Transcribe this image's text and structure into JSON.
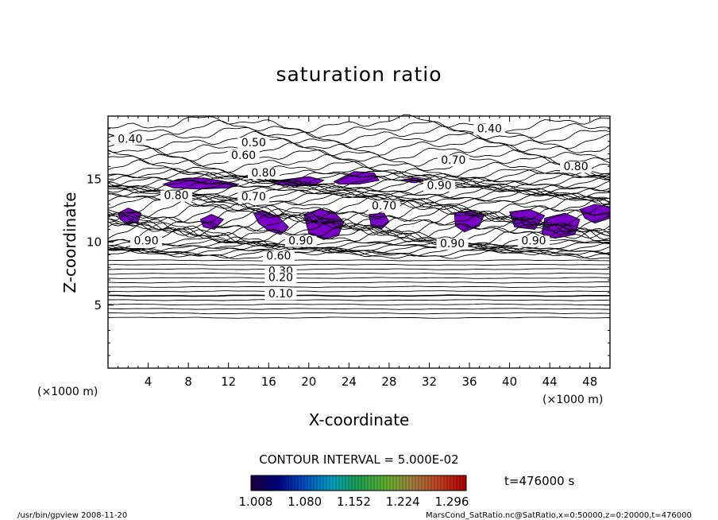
{
  "chart_data": {
    "type": "heatmap",
    "title": "saturation ratio",
    "xlabel": "X-coordinate",
    "ylabel": "Z-coordinate",
    "x_unit": "(×1000 m)",
    "y_unit": "(×1000 m)",
    "xlim": [
      0,
      50
    ],
    "ylim": [
      0,
      20
    ],
    "x_ticks": [
      4,
      8,
      12,
      16,
      20,
      24,
      28,
      32,
      36,
      40,
      44,
      48
    ],
    "y_ticks": [
      5,
      10,
      15
    ],
    "contour_interval_text": "CONTOUR INTERVAL = 5.000E-02",
    "contour_labels": [
      {
        "text": "0.40",
        "x": 2.2,
        "z": 17.9
      },
      {
        "text": "0.40",
        "x": 38.0,
        "z": 18.7
      },
      {
        "text": "0.50",
        "x": 14.5,
        "z": 17.6
      },
      {
        "text": "0.60",
        "x": 13.5,
        "z": 16.6
      },
      {
        "text": "0.70",
        "x": 34.4,
        "z": 16.2
      },
      {
        "text": "0.80",
        "x": 15.5,
        "z": 15.2
      },
      {
        "text": "0.90",
        "x": 33.0,
        "z": 14.2
      },
      {
        "text": "0.70",
        "x": 14.5,
        "z": 13.3
      },
      {
        "text": "0.80",
        "x": 6.8,
        "z": 13.4
      },
      {
        "text": "0.70",
        "x": 27.5,
        "z": 12.6
      },
      {
        "text": "0.80",
        "x": 46.6,
        "z": 15.7
      },
      {
        "text": "0.90",
        "x": 3.8,
        "z": 9.8
      },
      {
        "text": "0.90",
        "x": 19.2,
        "z": 9.8
      },
      {
        "text": "0.90",
        "x": 34.3,
        "z": 9.6
      },
      {
        "text": "0.90",
        "x": 42.4,
        "z": 9.8
      },
      {
        "text": "0.60",
        "x": 17.0,
        "z": 8.6
      },
      {
        "text": "0.30",
        "x": 17.2,
        "z": 7.4
      },
      {
        "text": "0.20",
        "x": 17.2,
        "z": 6.9
      },
      {
        "text": "0.10",
        "x": 17.2,
        "z": 5.6
      }
    ],
    "supersaturated_regions": [
      {
        "x": [
          5.5,
          7.0,
          9.5,
          11.0,
          13.0,
          12.0,
          9.0,
          6.5
        ],
        "z": [
          14.6,
          15.0,
          15.1,
          14.9,
          14.6,
          14.3,
          14.2,
          14.3
        ]
      },
      {
        "x": [
          16.0,
          18.0,
          20.0,
          21.5,
          20.5,
          17.5
        ],
        "z": [
          14.8,
          15.0,
          15.2,
          14.9,
          14.5,
          14.5
        ]
      },
      {
        "x": [
          22.5,
          24.5,
          26.5,
          27.0,
          25.0,
          23.0
        ],
        "z": [
          14.8,
          15.6,
          15.5,
          14.9,
          14.6,
          14.6
        ]
      },
      {
        "x": [
          29.0,
          30.5,
          31.8,
          30.5
        ],
        "z": [
          14.9,
          15.1,
          14.9,
          14.7
        ]
      },
      {
        "x": [
          1.0,
          2.0,
          3.3,
          3.0,
          2.0,
          1.2
        ],
        "z": [
          12.3,
          12.7,
          12.3,
          11.6,
          11.4,
          11.8
        ]
      },
      {
        "x": [
          9.2,
          10.3,
          11.5,
          10.6,
          9.5
        ],
        "z": [
          11.8,
          12.2,
          11.8,
          11.0,
          11.2
        ]
      },
      {
        "x": [
          14.5,
          15.5,
          17.0,
          18.0,
          17.2,
          16.0,
          15.0
        ],
        "z": [
          12.3,
          12.5,
          12.0,
          11.2,
          10.6,
          10.9,
          11.5
        ]
      },
      {
        "x": [
          19.5,
          21.0,
          22.5,
          23.5,
          23.0,
          21.5,
          20.0
        ],
        "z": [
          12.2,
          12.6,
          12.4,
          11.6,
          10.6,
          10.2,
          10.7
        ]
      },
      {
        "x": [
          26.0,
          27.5,
          28.0,
          27.2,
          26.2
        ],
        "z": [
          12.2,
          12.3,
          11.6,
          11.0,
          11.3
        ]
      },
      {
        "x": [
          34.5,
          36.0,
          37.5,
          37.0,
          35.5,
          34.6
        ],
        "z": [
          12.3,
          12.5,
          12.2,
          11.3,
          10.8,
          11.3
        ]
      },
      {
        "x": [
          40.0,
          42.0,
          43.5,
          42.5,
          40.5
        ],
        "z": [
          12.4,
          12.6,
          12.1,
          11.0,
          11.2
        ]
      },
      {
        "x": [
          43.5,
          45.5,
          47.0,
          46.5,
          44.5,
          43.2
        ],
        "z": [
          11.9,
          12.3,
          11.8,
          10.6,
          10.3,
          10.7
        ]
      },
      {
        "x": [
          47.0,
          48.5,
          50.0,
          50.0,
          48.5,
          47.5
        ],
        "z": [
          12.6,
          13.0,
          12.8,
          11.9,
          11.5,
          11.9
        ]
      }
    ],
    "supersaturated_color": "#7a00c8",
    "colorbar_ticks": [
      "1.008",
      "1.080",
      "1.152",
      "1.224",
      "1.296"
    ],
    "colorbar_colors": [
      "#1a0040",
      "#000080",
      "#0050c0",
      "#00a0c0",
      "#20a050",
      "#60b030",
      "#a08040",
      "#c04020",
      "#b00000"
    ],
    "time_text": "t=476000 s",
    "footer_left": "/usr/bin/gpview  2008-11-20",
    "footer_right": "MarsCond_SatRatio.nc@SatRatio,x=0:50000,z=0:20000,t=476000"
  }
}
